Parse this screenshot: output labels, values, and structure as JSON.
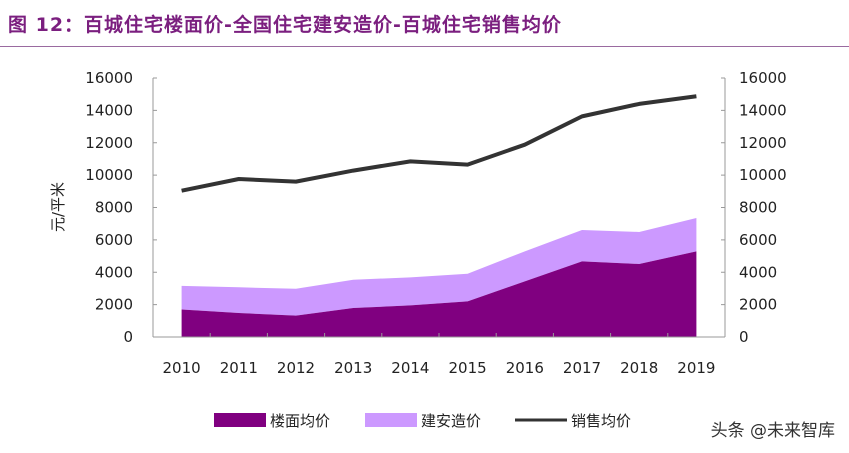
{
  "title": "图 12：百城住宅楼面价-全国住宅建安造价-百城住宅销售均价",
  "watermark": "头条 @未来智库",
  "chart_data": {
    "type": "area",
    "title": "图 12：百城住宅楼面价-全国住宅建安造价-百城住宅销售均价",
    "categories": [
      "2010",
      "2011",
      "2012",
      "2013",
      "2014",
      "2015",
      "2016",
      "2017",
      "2018",
      "2019"
    ],
    "ylabel": "元/平米",
    "ylim": [
      0,
      16000
    ],
    "y2lim": [
      0,
      16000
    ],
    "yticks": [
      "0",
      "2000",
      "4000",
      "6000",
      "8000",
      "10000",
      "12000",
      "14000",
      "16000"
    ],
    "grid": false,
    "legend_placement": "bottom",
    "series": [
      {
        "name": "楼面均价",
        "kind": "stacked-area",
        "color": "#800080",
        "values": [
          1700,
          1480,
          1320,
          1790,
          1950,
          2200,
          3440,
          4670,
          4510,
          5290
        ]
      },
      {
        "name": "建安造价",
        "kind": "stacked-area",
        "color": "#CC99FF",
        "values": [
          1460,
          1590,
          1660,
          1750,
          1730,
          1710,
          1850,
          1940,
          1980,
          2060
        ]
      },
      {
        "name": "销售均价",
        "kind": "line",
        "axis": "right",
        "color": "#333333",
        "values": [
          9040,
          9760,
          9600,
          10280,
          10850,
          10650,
          11880,
          13630,
          14400,
          14870
        ]
      }
    ]
  }
}
